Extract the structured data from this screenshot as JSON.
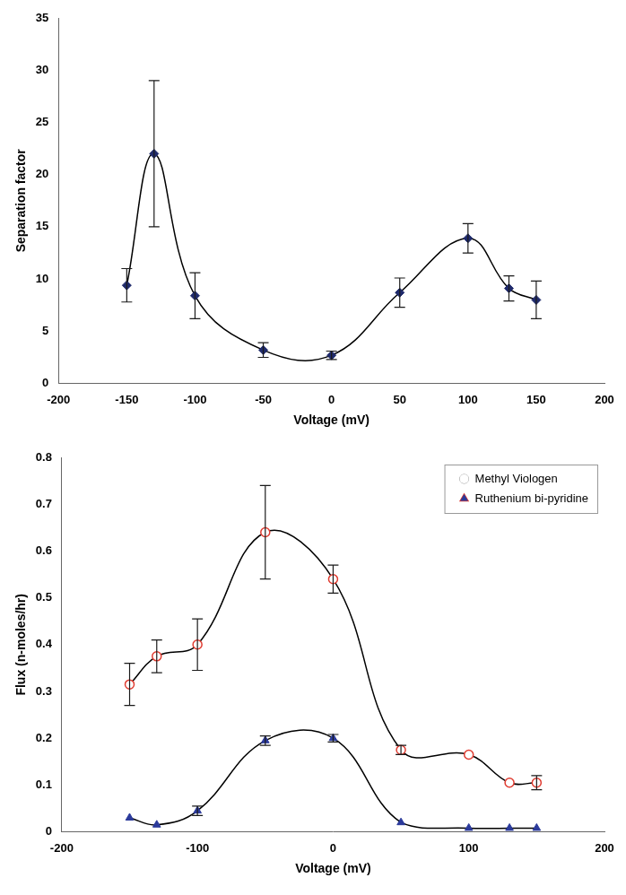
{
  "chart_data": [
    {
      "type": "line",
      "x": [
        -150,
        -130,
        -100,
        -50,
        0,
        50,
        100,
        130,
        150
      ],
      "values": [
        9.4,
        22,
        8.4,
        3.2,
        2.7,
        8.7,
        13.9,
        9.1,
        8.0
      ],
      "errors": [
        1.6,
        7.0,
        2.2,
        0.7,
        0.4,
        1.4,
        1.4,
        1.2,
        1.8
      ],
      "color": "#1f2a6b",
      "marker": "diamond",
      "x_label": "Voltage (mV)",
      "y_label": "Separation factor",
      "xlim": [
        -200,
        200
      ],
      "xticks": [
        -200,
        -150,
        -100,
        -50,
        0,
        50,
        100,
        150,
        200
      ],
      "ylim": [
        0,
        35
      ],
      "yticks": [
        0,
        5,
        10,
        15,
        20,
        25,
        30,
        35
      ],
      "grid": false
    },
    {
      "type": "line",
      "x": [
        -150,
        -130,
        -100,
        -50,
        0,
        50,
        100,
        130,
        150
      ],
      "series": [
        {
          "name": "Methyl Viologen",
          "color": "#e03c31",
          "marker": "circle_open",
          "values": [
            0.315,
            0.375,
            0.4,
            0.64,
            0.54,
            0.175,
            0.165,
            0.105,
            0.105
          ],
          "errors": [
            0.045,
            0.035,
            0.055,
            0.1,
            0.03,
            0.01,
            0.0,
            0.0,
            0.015
          ]
        },
        {
          "name": "Ruthenium bi-pyridine",
          "color": "#2b3a9b",
          "marker": "triangle",
          "values": [
            0.03,
            0.015,
            0.045,
            0.195,
            0.2,
            0.02,
            0.008,
            0.008,
            0.008
          ],
          "errors": [
            0.0,
            0.0,
            0.01,
            0.01,
            0.008,
            0.0,
            0.0,
            0.0,
            0.0
          ]
        }
      ],
      "x_label": "Voltage (mV)",
      "y_label": "Flux (n-moles/hr)",
      "xlim": [
        -200,
        200
      ],
      "xticks": [
        -200,
        -100,
        0,
        100,
        200
      ],
      "ylim": [
        0,
        0.8
      ],
      "yticks": [
        0,
        0.1,
        0.2,
        0.3,
        0.4,
        0.5,
        0.6,
        0.7,
        0.8
      ],
      "grid": false,
      "legend": "upper right"
    }
  ]
}
